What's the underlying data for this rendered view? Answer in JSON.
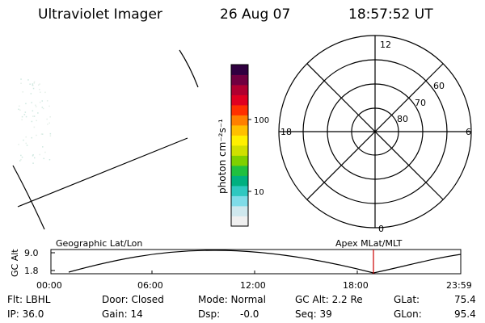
{
  "header": {
    "instrument": "Ultraviolet Imager",
    "date": "26 Aug 07",
    "time": "18:57:52 UT"
  },
  "colorbar": {
    "unit_label": "photon cm⁻²s⁻¹",
    "ticks": [
      "100",
      "10"
    ],
    "colors": [
      "#f0f0f0",
      "#cfe8ee",
      "#7fdce8",
      "#2fc8c0",
      "#00b080",
      "#20c040",
      "#7fd000",
      "#d0e000",
      "#fff000",
      "#ffc000",
      "#ff8000",
      "#ff3000",
      "#e00020",
      "#b00030",
      "#700040",
      "#300040"
    ]
  },
  "polar": {
    "mlt_labels": {
      "top": "12",
      "left": "18",
      "right": "6",
      "bottom": "0"
    },
    "lat_labels": [
      "60",
      "70",
      "80"
    ]
  },
  "orbit_plot": {
    "left_title": "Geographic Lat/Lon",
    "right_title": "Apex MLat/MLT",
    "y_axis_label": "GC Alt",
    "y_ticks": [
      "9.0",
      "1.8"
    ],
    "x_ticks": [
      "00:00",
      "06:00",
      "12:00",
      "18:00",
      "23:59"
    ],
    "marker_color": "#cc0000"
  },
  "status": {
    "filter": "Flt: LBHL",
    "ip": "IP: 36.0",
    "door": "Door: Closed",
    "gain": "Gain: 14",
    "mode": "Mode: Normal",
    "dsp": "Dsp:",
    "dsp_value": "-0.0",
    "gc_alt": "GC Alt: 2.2 Re",
    "seq": "Seq: 39",
    "glat": "GLat:",
    "glat_value": "75.4",
    "glon": "GLon:",
    "glon_value": "95.4"
  }
}
